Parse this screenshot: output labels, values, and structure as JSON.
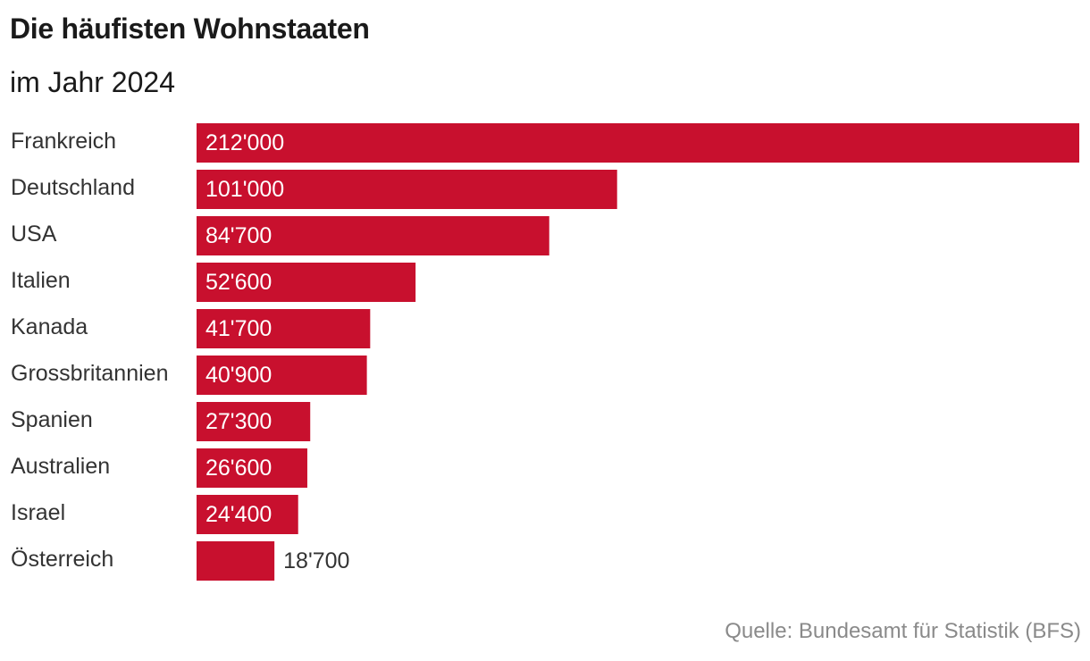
{
  "header": {
    "title": "Die häufisten Wohnstaaten",
    "subtitle": "im Jahr 2024"
  },
  "footer": {
    "source": "Quelle: Bundesamt für Statistik (BFS)"
  },
  "colors": {
    "bar": "#c8102e",
    "label": "#333333",
    "value_inside": "#ffffff",
    "value_outside": "#333333"
  },
  "chart_data": {
    "type": "bar",
    "orientation": "horizontal",
    "title": "Die häufisten Wohnstaaten",
    "subtitle": "im Jahr 2024",
    "xlabel": "",
    "ylabel": "",
    "xlim": [
      0,
      212000
    ],
    "grid": false,
    "legend": "none",
    "categories": [
      "Frankreich",
      "Deutschland",
      "USA",
      "Italien",
      "Kanada",
      "Grossbritannien",
      "Spanien",
      "Australien",
      "Israel",
      "Österreich"
    ],
    "values": [
      212000,
      101000,
      84700,
      52600,
      41700,
      40900,
      27300,
      26600,
      24400,
      18700
    ],
    "value_labels": [
      "212'000",
      "101'000",
      "84'700",
      "52'600",
      "41'700",
      "40'900",
      "27'300",
      "26'600",
      "24'400",
      "18'700"
    ]
  }
}
